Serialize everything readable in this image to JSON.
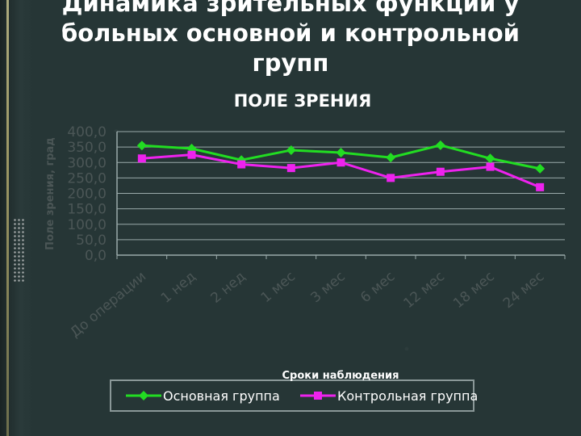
{
  "slide": {
    "title_lines": [
      "Динамика зрительных функций у",
      "больных основной и контрольной",
      "групп"
    ]
  },
  "chart_data": {
    "type": "line",
    "title": "ПОЛЕ ЗРЕНИЯ",
    "xlabel": "Сроки наблюдения",
    "ylabel": "Поле зрения, град",
    "categories": [
      "До операции",
      "1 нед",
      "2 нед",
      "1 мес",
      "3 мес",
      "6 мес",
      "12 мес",
      "18 мес",
      "24 мес"
    ],
    "ylim": [
      0,
      400
    ],
    "yticks": [
      "0,0",
      "50,0",
      "100,0",
      "150,0",
      "200,0",
      "250,0",
      "300,0",
      "350,0",
      "400,0"
    ],
    "grid": true,
    "legend_position": "bottom",
    "series": [
      {
        "name": "Основная группа",
        "color": "#22dd22",
        "marker": "diamond",
        "values": [
          355,
          345,
          308,
          340,
          332,
          316,
          356,
          313,
          280
        ]
      },
      {
        "name": "Контрольная группа",
        "color": "#ee22ee",
        "marker": "square",
        "values": [
          313,
          325,
          294,
          282,
          300,
          250,
          270,
          286,
          220
        ]
      }
    ]
  }
}
